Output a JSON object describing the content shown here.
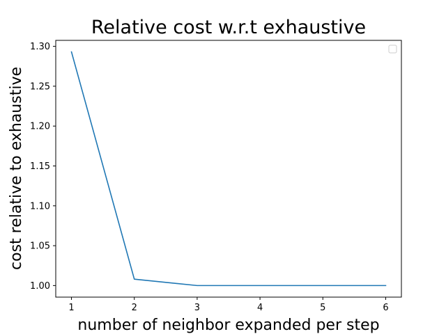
{
  "chart_data": {
    "type": "line",
    "title": "Relative cost w.r.t exhaustive",
    "xlabel": "number of neighbor expanded per step",
    "ylabel": "cost relative to exhaustive",
    "x": [
      1,
      2,
      3,
      4,
      5,
      6
    ],
    "series": [
      {
        "values": [
          1.293,
          1.008,
          1.0,
          1.0,
          1.0,
          1.0
        ],
        "color": "#1f77b4"
      }
    ],
    "xlim": [
      0.75,
      6.25
    ],
    "ylim": [
      0.9855,
      1.3075
    ],
    "x_ticks": [
      "1",
      "2",
      "3",
      "4",
      "5",
      "6"
    ],
    "y_ticks": [
      "1.00",
      "1.05",
      "1.10",
      "1.15",
      "1.20",
      "1.25",
      "1.30"
    ],
    "grid": false,
    "legend": {
      "placement": "top-right",
      "entries": []
    }
  }
}
